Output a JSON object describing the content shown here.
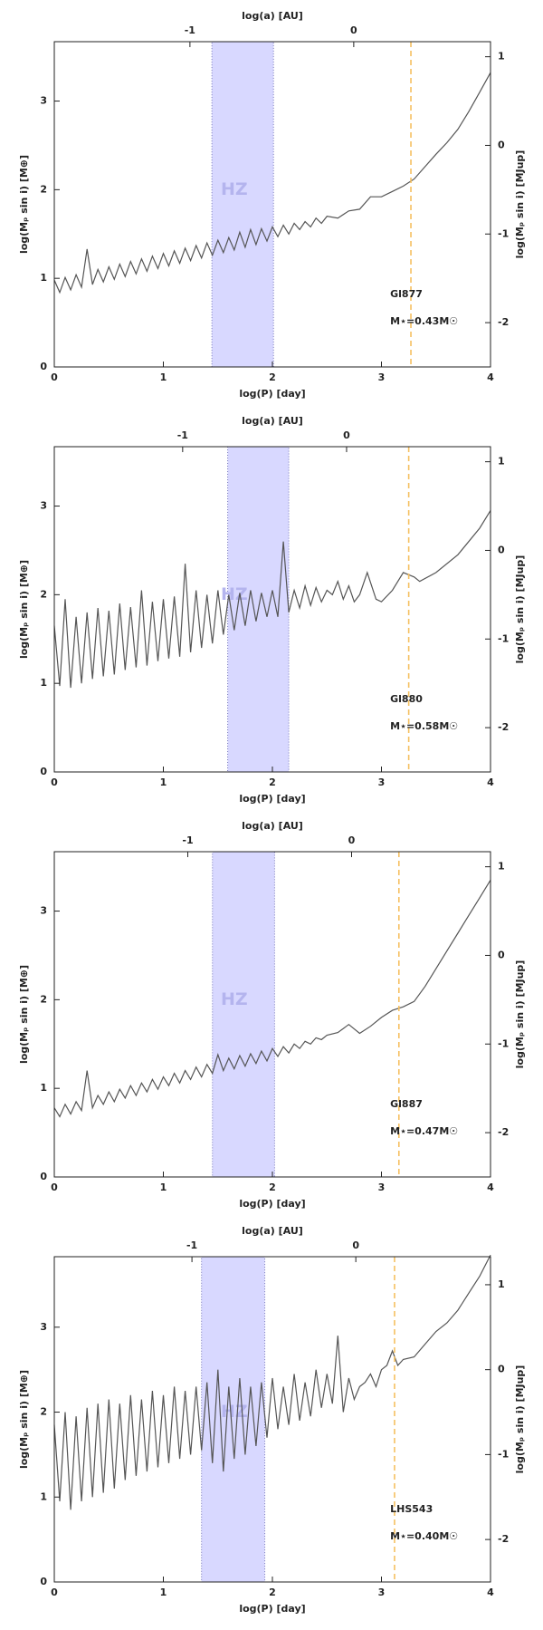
{
  "chart_data": [
    {
      "type": "line",
      "xlabel": "log(P) [day]",
      "x2label": "log(a) [AU]",
      "ylabel": "log(Mₚ sin i) [M⊕]",
      "y2label": "log(Mₚ sin i) [MJup]",
      "star": "Gl877",
      "mass": "M⋆=0.43M☉",
      "color": "#555555",
      "xlim": [
        0,
        4
      ],
      "xticks": [
        0,
        1,
        2,
        3,
        4
      ],
      "ylim": [
        0,
        3.67
      ],
      "yticks": [
        0,
        1,
        2,
        3
      ],
      "y2lim": [
        -2.5,
        1.17
      ],
      "y2ticks": [
        -2,
        -1,
        0,
        1
      ],
      "x2lim": [
        -1.828,
        0.835
      ],
      "x2ticks": [
        -1,
        0
      ],
      "hz": {
        "label": "HZ",
        "x": [
          1.445,
          2.01
        ],
        "color": "#d8d8ff"
      },
      "vline": {
        "x": 3.27,
        "color": "#f5c060"
      },
      "x": [
        0,
        0.05,
        0.1,
        0.15,
        0.2,
        0.25,
        0.3,
        0.35,
        0.4,
        0.45,
        0.5,
        0.55,
        0.6,
        0.65,
        0.7,
        0.75,
        0.8,
        0.85,
        0.9,
        0.95,
        1.0,
        1.05,
        1.1,
        1.15,
        1.2,
        1.25,
        1.3,
        1.35,
        1.4,
        1.45,
        1.5,
        1.55,
        1.6,
        1.65,
        1.7,
        1.75,
        1.8,
        1.85,
        1.9,
        1.95,
        2.0,
        2.05,
        2.1,
        2.15,
        2.2,
        2.25,
        2.3,
        2.35,
        2.4,
        2.45,
        2.5,
        2.6,
        2.7,
        2.8,
        2.9,
        3.0,
        3.1,
        3.2,
        3.3,
        3.4,
        3.5,
        3.6,
        3.7,
        3.8,
        3.9,
        4.0
      ],
      "values": [
        0.98,
        0.84,
        1.01,
        0.87,
        1.04,
        0.9,
        1.33,
        0.93,
        1.1,
        0.96,
        1.13,
        0.99,
        1.16,
        1.02,
        1.19,
        1.05,
        1.22,
        1.08,
        1.25,
        1.11,
        1.28,
        1.14,
        1.31,
        1.17,
        1.34,
        1.2,
        1.37,
        1.23,
        1.4,
        1.26,
        1.43,
        1.29,
        1.46,
        1.32,
        1.52,
        1.35,
        1.55,
        1.38,
        1.56,
        1.42,
        1.58,
        1.47,
        1.6,
        1.5,
        1.62,
        1.55,
        1.64,
        1.58,
        1.68,
        1.62,
        1.7,
        1.68,
        1.76,
        1.78,
        1.92,
        1.92,
        1.98,
        2.04,
        2.12,
        2.26,
        2.4,
        2.53,
        2.68,
        2.88,
        3.1,
        3.32
      ]
    },
    {
      "type": "line",
      "xlabel": "log(P) [day]",
      "x2label": "log(a) [AU]",
      "ylabel": "log(Mₚ sin i) [M⊕]",
      "y2label": "log(Mₚ sin i) [MJup]",
      "star": "Gl880",
      "mass": "M⋆=0.58M☉",
      "color": "#555555",
      "xlim": [
        0,
        4
      ],
      "xticks": [
        0,
        1,
        2,
        3,
        4
      ],
      "ylim": [
        0,
        3.67
      ],
      "yticks": [
        0,
        1,
        2,
        3
      ],
      "y2lim": [
        -2.5,
        1.17
      ],
      "y2ticks": [
        -2,
        -1,
        0,
        1
      ],
      "x2lim": [
        -1.783,
        0.878
      ],
      "x2ticks": [
        -1,
        0
      ],
      "hz": {
        "label": "HZ",
        "x": [
          1.59,
          2.15
        ],
        "color": "#d8d8ff"
      },
      "vline": {
        "x": 3.25,
        "color": "#f5c060"
      },
      "x": [
        0,
        0.05,
        0.1,
        0.15,
        0.2,
        0.25,
        0.3,
        0.35,
        0.4,
        0.45,
        0.5,
        0.55,
        0.6,
        0.65,
        0.7,
        0.75,
        0.8,
        0.85,
        0.9,
        0.95,
        1.0,
        1.05,
        1.1,
        1.15,
        1.2,
        1.25,
        1.3,
        1.35,
        1.4,
        1.45,
        1.5,
        1.55,
        1.6,
        1.65,
        1.7,
        1.75,
        1.8,
        1.85,
        1.9,
        1.95,
        2.0,
        2.05,
        2.1,
        2.15,
        2.2,
        2.25,
        2.3,
        2.35,
        2.4,
        2.45,
        2.5,
        2.55,
        2.6,
        2.65,
        2.7,
        2.75,
        2.8,
        2.87,
        2.95,
        3.0,
        3.1,
        3.2,
        3.3,
        3.35,
        3.5,
        3.7,
        3.9,
        4.0
      ],
      "values": [
        1.65,
        0.97,
        1.95,
        0.95,
        1.75,
        1.0,
        1.8,
        1.05,
        1.85,
        1.08,
        1.82,
        1.1,
        1.9,
        1.15,
        1.86,
        1.18,
        2.05,
        1.2,
        1.92,
        1.25,
        1.95,
        1.28,
        1.98,
        1.3,
        2.35,
        1.35,
        2.05,
        1.4,
        2.0,
        1.45,
        2.05,
        1.55,
        2.0,
        1.6,
        2.02,
        1.65,
        2.05,
        1.7,
        2.02,
        1.75,
        2.05,
        1.75,
        2.6,
        1.8,
        2.05,
        1.85,
        2.1,
        1.88,
        2.08,
        1.92,
        2.05,
        2.0,
        2.15,
        1.95,
        2.1,
        1.92,
        2.0,
        2.25,
        1.95,
        1.92,
        2.05,
        2.25,
        2.2,
        2.15,
        2.25,
        2.45,
        2.75,
        2.95
      ]
    },
    {
      "type": "line",
      "xlabel": "log(P) [day]",
      "x2label": "log(a) [AU]",
      "ylabel": "log(Mₚ sin i) [M⊕]",
      "y2label": "log(Mₚ sin i) [MJup]",
      "star": "Gl887",
      "mass": "M⋆=0.47M☉",
      "color": "#555555",
      "xlim": [
        0,
        4
      ],
      "xticks": [
        0,
        1,
        2,
        3,
        4
      ],
      "ylim": [
        0,
        3.67
      ],
      "yticks": [
        0,
        1,
        2,
        3
      ],
      "y2lim": [
        -2.5,
        1.17
      ],
      "y2ticks": [
        -2,
        -1,
        0,
        1
      ],
      "x2lim": [
        -1.815,
        0.848
      ],
      "x2ticks": [
        -1,
        0
      ],
      "hz": {
        "label": "HZ",
        "x": [
          1.45,
          2.02
        ],
        "color": "#d8d8ff"
      },
      "vline": {
        "x": 3.16,
        "color": "#f5c060"
      },
      "x": [
        0,
        0.05,
        0.1,
        0.15,
        0.2,
        0.25,
        0.3,
        0.35,
        0.4,
        0.45,
        0.5,
        0.55,
        0.6,
        0.65,
        0.7,
        0.75,
        0.8,
        0.85,
        0.9,
        0.95,
        1.0,
        1.05,
        1.1,
        1.15,
        1.2,
        1.25,
        1.3,
        1.35,
        1.4,
        1.45,
        1.5,
        1.55,
        1.6,
        1.65,
        1.7,
        1.75,
        1.8,
        1.85,
        1.9,
        1.95,
        2.0,
        2.05,
        2.1,
        2.15,
        2.2,
        2.25,
        2.3,
        2.35,
        2.4,
        2.45,
        2.5,
        2.6,
        2.7,
        2.8,
        2.9,
        3.0,
        3.1,
        3.2,
        3.3,
        3.4,
        3.5,
        3.6,
        3.7,
        3.8,
        3.9,
        4.0
      ],
      "values": [
        0.78,
        0.68,
        0.82,
        0.71,
        0.85,
        0.75,
        1.2,
        0.78,
        0.92,
        0.82,
        0.96,
        0.85,
        0.99,
        0.89,
        1.03,
        0.92,
        1.06,
        0.96,
        1.1,
        0.99,
        1.13,
        1.03,
        1.17,
        1.06,
        1.2,
        1.1,
        1.24,
        1.13,
        1.27,
        1.17,
        1.38,
        1.2,
        1.34,
        1.22,
        1.37,
        1.25,
        1.39,
        1.28,
        1.42,
        1.31,
        1.45,
        1.36,
        1.47,
        1.4,
        1.5,
        1.45,
        1.53,
        1.5,
        1.57,
        1.55,
        1.6,
        1.63,
        1.72,
        1.62,
        1.7,
        1.8,
        1.88,
        1.92,
        1.98,
        2.15,
        2.35,
        2.55,
        2.75,
        2.95,
        3.15,
        3.35
      ]
    },
    {
      "type": "line",
      "xlabel": "log(P) [day]",
      "x2label": "log(a) [AU]",
      "ylabel": "log(Mₚ sin i) [M⊕]",
      "y2label": "log(Mₚ sin i) [MJup]",
      "star": "LHS543",
      "mass": "M⋆=0.40M☉",
      "color": "#555555",
      "xlim": [
        0,
        4
      ],
      "xticks": [
        0,
        1,
        2,
        3,
        4
      ],
      "ylim": [
        0,
        3.83
      ],
      "yticks": [
        0,
        1,
        2,
        3
      ],
      "y2lim": [
        -2.5,
        1.33
      ],
      "y2ticks": [
        -2,
        -1,
        0,
        1
      ],
      "x2lim": [
        -1.84,
        0.822
      ],
      "x2ticks": [
        -1,
        0
      ],
      "hz": {
        "label": "HZ",
        "x": [
          1.35,
          1.93
        ],
        "color": "#d8d8ff"
      },
      "vline": {
        "x": 3.12,
        "color": "#f5c060"
      },
      "x": [
        0,
        0.05,
        0.1,
        0.15,
        0.2,
        0.25,
        0.3,
        0.35,
        0.4,
        0.45,
        0.5,
        0.55,
        0.6,
        0.65,
        0.7,
        0.75,
        0.8,
        0.85,
        0.9,
        0.95,
        1.0,
        1.05,
        1.1,
        1.15,
        1.2,
        1.25,
        1.3,
        1.35,
        1.4,
        1.45,
        1.5,
        1.55,
        1.6,
        1.65,
        1.7,
        1.75,
        1.8,
        1.85,
        1.9,
        1.95,
        2.0,
        2.05,
        2.1,
        2.15,
        2.2,
        2.25,
        2.3,
        2.35,
        2.4,
        2.45,
        2.5,
        2.55,
        2.6,
        2.65,
        2.7,
        2.75,
        2.8,
        2.85,
        2.9,
        2.95,
        3.0,
        3.05,
        3.1,
        3.15,
        3.2,
        3.3,
        3.4,
        3.5,
        3.6,
        3.7,
        3.8,
        3.9,
        4.0
      ],
      "values": [
        1.85,
        0.95,
        2.0,
        0.85,
        1.95,
        0.95,
        2.05,
        1.0,
        2.1,
        1.05,
        2.15,
        1.1,
        2.1,
        1.2,
        2.2,
        1.25,
        2.15,
        1.3,
        2.25,
        1.35,
        2.2,
        1.4,
        2.3,
        1.45,
        2.25,
        1.5,
        2.3,
        1.55,
        2.35,
        1.4,
        2.5,
        1.3,
        2.3,
        1.45,
        2.4,
        1.5,
        2.3,
        1.6,
        2.35,
        1.7,
        2.4,
        1.8,
        2.3,
        1.85,
        2.45,
        1.9,
        2.35,
        1.95,
        2.5,
        2.05,
        2.45,
        2.1,
        2.9,
        2.0,
        2.4,
        2.15,
        2.3,
        2.35,
        2.45,
        2.3,
        2.5,
        2.55,
        2.72,
        2.55,
        2.62,
        2.65,
        2.8,
        2.95,
        3.05,
        3.2,
        3.4,
        3.6,
        3.85
      ]
    }
  ]
}
